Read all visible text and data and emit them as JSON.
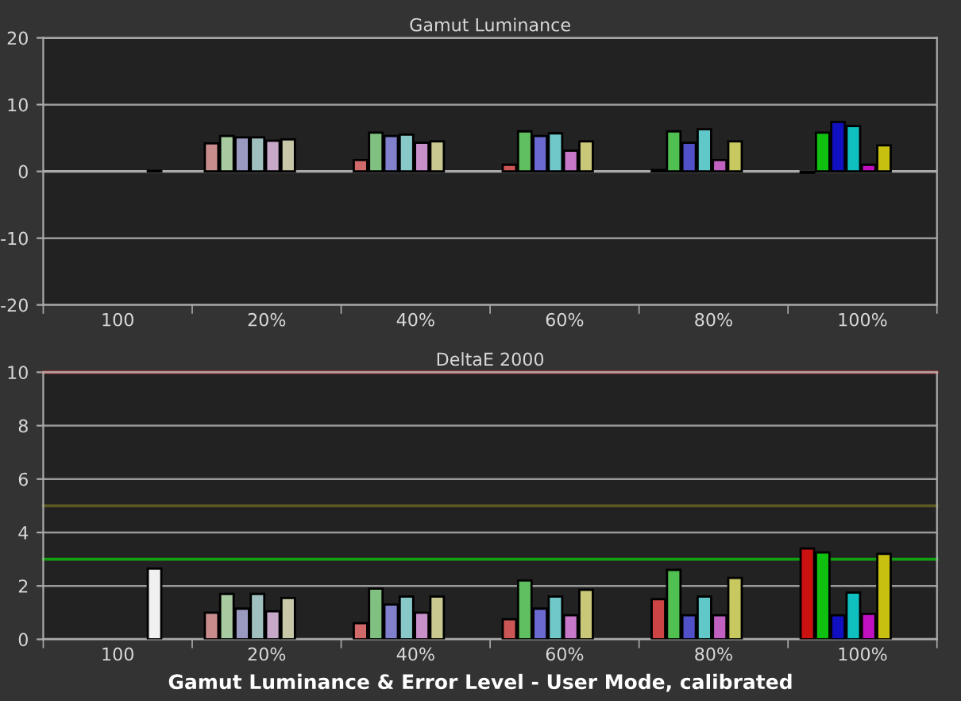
{
  "chart_data": [
    {
      "type": "bar",
      "title": "Gamut Luminance",
      "categories": [
        "100",
        "20%",
        "40%",
        "60%",
        "80%",
        "100%"
      ],
      "ylim": [
        -20,
        20
      ],
      "yticks": [
        -20,
        -10,
        0,
        10,
        20
      ],
      "grid": "y",
      "series": [
        {
          "colors": [
            null,
            "#c98c8c",
            "#d06a6a",
            "#cc5555",
            "#111111",
            "#111111"
          ],
          "values": [
            null,
            4.2,
            1.7,
            1.0,
            0.2,
            -0.2
          ]
        },
        {
          "colors": [
            null,
            "#a8caa0",
            "#80c080",
            "#60c060",
            "#50c050",
            "#10c010"
          ],
          "values": [
            null,
            5.3,
            5.8,
            6.0,
            6.0,
            5.8
          ]
        },
        {
          "colors": [
            null,
            "#9a9ac0",
            "#8080cc",
            "#6a6ad0",
            "#5050c8",
            "#1010c0"
          ],
          "values": [
            null,
            5.1,
            5.3,
            5.3,
            4.3,
            7.4
          ]
        },
        {
          "colors": [
            null,
            "#a0c0c0",
            "#88c8c8",
            "#70c8c8",
            "#60c8c8",
            "#10c0c0"
          ],
          "values": [
            null,
            5.1,
            5.5,
            5.7,
            6.3,
            6.8
          ]
        },
        {
          "colors": [
            null,
            "#c8a8c8",
            "#c890c8",
            "#c878c8",
            "#c060c0",
            "#c010c0"
          ],
          "values": [
            null,
            4.6,
            4.3,
            3.1,
            1.7,
            1.0
          ]
        },
        {
          "colors": [
            null,
            "#c8c8a8",
            "#c8c890",
            "#c8c878",
            "#c8c860",
            "#c8c010"
          ],
          "values": [
            null,
            4.8,
            4.5,
            4.5,
            4.5,
            3.9
          ]
        },
        {
          "colors": [
            "#111111",
            null,
            null,
            null,
            null,
            null
          ],
          "values": [
            0.1,
            null,
            null,
            null,
            null,
            null
          ]
        }
      ]
    },
    {
      "type": "bar",
      "title": "DeltaE 2000",
      "categories": [
        "100",
        "20%",
        "40%",
        "60%",
        "80%",
        "100%"
      ],
      "ylim": [
        0,
        10
      ],
      "yticks": [
        0,
        2,
        4,
        6,
        8,
        10
      ],
      "grid": "y",
      "ref_lines": [
        {
          "axis": "y",
          "value": 10,
          "color": "#e04040"
        },
        {
          "axis": "y",
          "value": 5,
          "color": "#5a5a20"
        },
        {
          "axis": "y",
          "value": 3,
          "color": "#10a010"
        }
      ],
      "annotations": [
        "Gamut Luminance & Error Level - User Mode, calibrated"
      ],
      "series": [
        {
          "colors": [
            null,
            "#c98c8c",
            "#d06a6a",
            "#cc5555",
            "#cc4444",
            "#cc1111"
          ],
          "values": [
            null,
            1.0,
            0.6,
            0.75,
            1.5,
            3.4
          ]
        },
        {
          "colors": [
            null,
            "#a8caa0",
            "#80c080",
            "#60c060",
            "#50c050",
            "#10c010"
          ],
          "values": [
            null,
            1.7,
            1.9,
            2.2,
            2.6,
            3.25
          ]
        },
        {
          "colors": [
            null,
            "#9a9ac0",
            "#8080cc",
            "#6a6ad0",
            "#5050c8",
            "#1010c0"
          ],
          "values": [
            null,
            1.15,
            1.3,
            1.15,
            0.9,
            0.9
          ]
        },
        {
          "colors": [
            null,
            "#a0c0c0",
            "#88c8c8",
            "#70c8c8",
            "#60c8c8",
            "#10c0c0"
          ],
          "values": [
            null,
            1.7,
            1.6,
            1.6,
            1.6,
            1.75
          ]
        },
        {
          "colors": [
            null,
            "#c8a8c8",
            "#c890c8",
            "#c878c8",
            "#c060c0",
            "#c010c0"
          ],
          "values": [
            null,
            1.05,
            1.0,
            0.9,
            0.9,
            0.95
          ]
        },
        {
          "colors": [
            null,
            "#c8c8a8",
            "#c8c890",
            "#c8c878",
            "#c8c860",
            "#c8c010"
          ],
          "values": [
            null,
            1.55,
            1.6,
            1.85,
            2.3,
            3.2
          ]
        },
        {
          "colors": [
            "#f0f0f0",
            null,
            null,
            null,
            null,
            null
          ],
          "values": [
            2.65,
            null,
            null,
            null,
            null,
            null
          ]
        }
      ]
    }
  ]
}
